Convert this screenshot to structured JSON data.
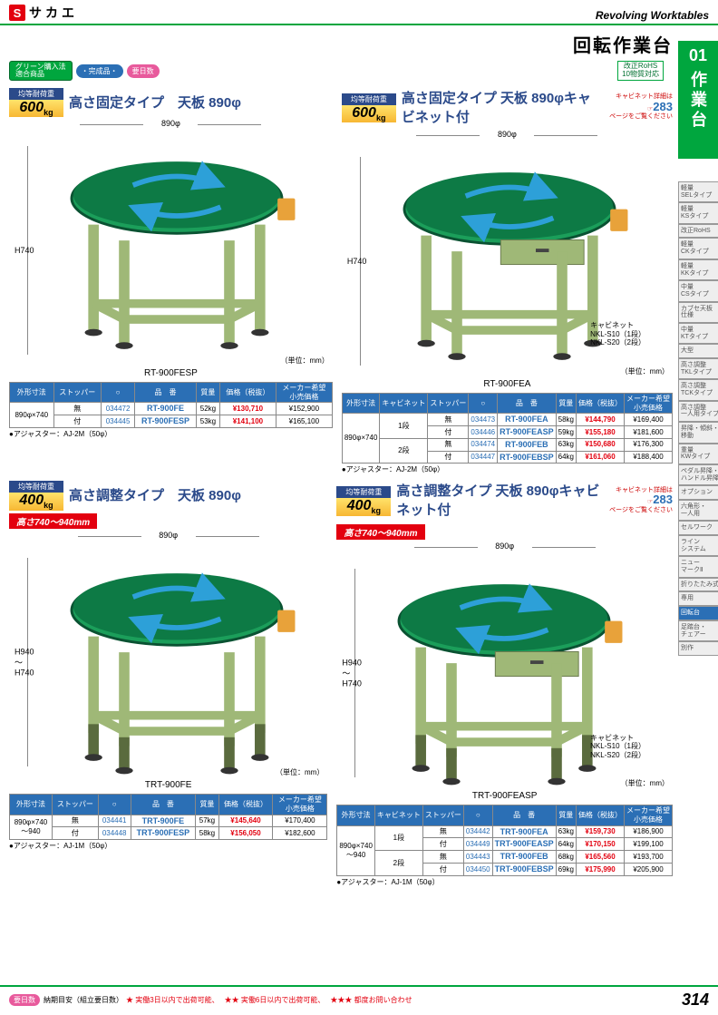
{
  "header": {
    "logo_text": "サカエ",
    "right": "Revolving Worktables"
  },
  "page_title": "回転作業台",
  "side_tab": {
    "num": "01",
    "text": "作業台"
  },
  "badges": {
    "green": "グリーン購入法\\n適合商品",
    "blue": "・完成品・",
    "pink": "要日数",
    "rohs": "改正RoHS\\n10物質対応"
  },
  "side_nav": [
    "軽量\\nSELタイプ",
    "軽量\\nKSタイプ",
    "改正RoHS",
    "軽量\\nCKタイプ",
    "軽量\\nKKタイプ",
    "中量\\nCSタイプ",
    "カブセ天板\\n仕様",
    "中量\\nKTタイプ",
    "大型",
    "高さ調整\\nTKLタイプ",
    "高さ調整\\nTCKタイプ",
    "高さ調整\\n一人用タイプ",
    "昇降・傾斜・\\n移動",
    "重量\\nKWタイプ",
    "ペダル昇降・\\nハンドル昇降",
    "オプション",
    "六角形・\\n一人用",
    "セルワーク",
    "ライン\\nシステム",
    "ニュー\\nマークⅡ",
    "折りたたみ式",
    "専用",
    "回転台",
    "足踏台・\\nチェアー",
    "別作"
  ],
  "side_nav_active_index": 22,
  "sections": [
    {
      "load": {
        "label": "均等耐荷重",
        "value": "600",
        "unit": "kg",
        "colors": [
          "#ffe36b",
          "#f7b733"
        ]
      },
      "title": "高さ固定タイプ　天板 890φ",
      "dims": {
        "top": "890φ",
        "left": "H740"
      },
      "model": "RT-900FESP",
      "unit_note": "（単位：mm）",
      "table": {
        "headers": [
          "外形寸法",
          "ストッパー",
          "○",
          "品　番",
          "質量",
          "価格（税抜）",
          "メーカー希望\\n小売価格"
        ],
        "rows": [
          [
            "890φ×740",
            "無",
            "034472",
            "RT-900FE",
            "52kg",
            "¥130,710",
            "¥152,900"
          ],
          [
            "",
            "付",
            "034445",
            "RT-900FESP",
            "53kg",
            "¥141,100",
            "¥165,100"
          ]
        ],
        "rowspan_col0": 2
      },
      "adjuster": "●アジャスター：AJ-2M（50φ）"
    },
    {
      "load": {
        "label": "均等耐荷重",
        "value": "600",
        "unit": "kg"
      },
      "title": "高さ固定タイプ 天板 890φキャビネット付",
      "cabinet_link": {
        "text1": "キャビネット詳細は",
        "num": "283",
        "text2": "ページをご覧ください"
      },
      "dims": {
        "top": "890φ",
        "left": "H740"
      },
      "model": "RT-900FEA",
      "cabinet_note": "キャビネット\\nNKL-S10（1段）\\nNKL-S20（2段）",
      "unit_note": "（単位：mm）",
      "table": {
        "headers": [
          "外形寸法",
          "キャビネット",
          "ストッパー",
          "○",
          "品　番",
          "質量",
          "価格（税抜）",
          "メーカー希望\\n小売価格"
        ],
        "rows": [
          [
            "890φ×740",
            "1段",
            "無",
            "034473",
            "RT-900FEA",
            "58kg",
            "¥144,790",
            "¥169,400"
          ],
          [
            "",
            "",
            "付",
            "034446",
            "RT-900FEASP",
            "59kg",
            "¥155,180",
            "¥181,600"
          ],
          [
            "",
            "2段",
            "無",
            "034474",
            "RT-900FEB",
            "63kg",
            "¥150,680",
            "¥176,300"
          ],
          [
            "",
            "",
            "付",
            "034447",
            "RT-900FEBSP",
            "64kg",
            "¥161,060",
            "¥188,400"
          ]
        ],
        "rowspan_col0": 4,
        "rowspan_col1": 2
      },
      "adjuster": "●アジャスター：AJ-2M（50φ）"
    },
    {
      "load": {
        "label": "均等耐荷重",
        "value": "400",
        "unit": "kg"
      },
      "title": "高さ調整タイプ　天板 890φ",
      "height_range": "高さ740～940mm",
      "dims": {
        "top": "890φ",
        "left": "H940\\n～\\nH740"
      },
      "model": "TRT-900FE",
      "unit_note": "（単位：mm）",
      "table": {
        "headers": [
          "外形寸法",
          "ストッパー",
          "○",
          "品　番",
          "質量",
          "価格（税抜）",
          "メーカー希望\\n小売価格"
        ],
        "rows": [
          [
            "890φ×740\\n～940",
            "無",
            "034441",
            "TRT-900FE",
            "57kg",
            "¥145,640",
            "¥170,400"
          ],
          [
            "",
            "付",
            "034448",
            "TRT-900FESP",
            "58kg",
            "¥156,050",
            "¥182,600"
          ]
        ],
        "rowspan_col0": 2
      },
      "adjuster": "●アジャスター：AJ-1M（50φ）"
    },
    {
      "load": {
        "label": "均等耐荷重",
        "value": "400",
        "unit": "kg"
      },
      "title": "高さ調整タイプ 天板 890φキャビネット付",
      "cabinet_link": {
        "text1": "キャビネット詳細は",
        "num": "283",
        "text2": "ページをご覧ください"
      },
      "height_range": "高さ740～940mm",
      "dims": {
        "top": "890φ",
        "left": "H940\\n～\\nH740"
      },
      "model": "TRT-900FEASP",
      "cabinet_note": "キャビネット\\nNKL-S10（1段）\\nNKL-S20（2段）",
      "unit_note": "（単位：mm）",
      "table": {
        "headers": [
          "外形寸法",
          "キャビネット",
          "ストッパー",
          "○",
          "品　番",
          "質量",
          "価格（税抜）",
          "メーカー希望\\n小売価格"
        ],
        "rows": [
          [
            "890φ×740\\n～940",
            "1段",
            "無",
            "034442",
            "TRT-900FEA",
            "63kg",
            "¥159,730",
            "¥186,900"
          ],
          [
            "",
            "",
            "付",
            "034449",
            "TRT-900FEASP",
            "64kg",
            "¥170,150",
            "¥199,100"
          ],
          [
            "",
            "2段",
            "無",
            "034443",
            "TRT-900FEB",
            "68kg",
            "¥165,560",
            "¥193,700"
          ],
          [
            "",
            "",
            "付",
            "034450",
            "TRT-900FEBSP",
            "69kg",
            "¥175,990",
            "¥205,900"
          ]
        ],
        "rowspan_col0": 4,
        "rowspan_col1": 2
      },
      "adjuster": "●アジャスター：AJ-1M（50φ）"
    }
  ],
  "footer": {
    "badge": "要日数",
    "text1": "納期目安（組立要日数）",
    "star1": "★ 実働3日以内で出荷可能、",
    "star2": "★★ 実働6日以内で出荷可能、",
    "star3": "★★★ 都度お問い合わせ",
    "page": "314"
  },
  "colors": {
    "table_green": "#1b9e5a",
    "table_top": "#0d7a45",
    "frame": "#9fb877",
    "accent": "#e8a23a",
    "blue": "#2b6fb5",
    "red": "#e3000f"
  }
}
